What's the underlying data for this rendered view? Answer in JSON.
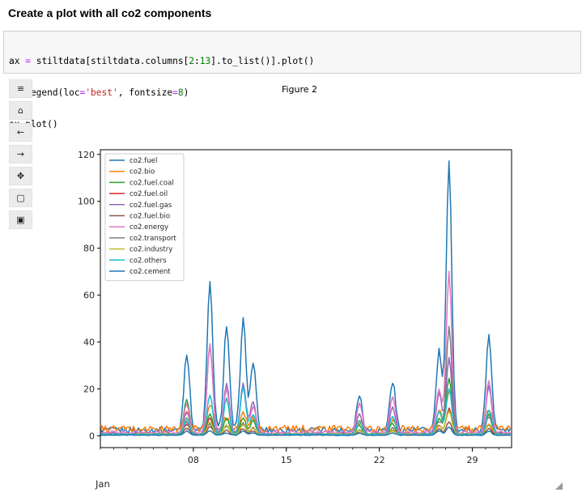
{
  "page": {
    "heading": "Create a plot with all co2 components"
  },
  "code": {
    "line1": {
      "a": "ax ",
      "op1": "=",
      "b": " stiltdata[stiltdata.columns[",
      "n1": "2",
      "c": ":",
      "n2": "13",
      "d": "].to_list()].plot()"
    },
    "line2": {
      "a": "ax.legend(loc",
      "op1": "=",
      "s1": "'best'",
      "b": ", fontsize",
      "op2": "=",
      "n1": "8",
      "c": ")"
    },
    "line3": {
      "a": "ax.plot()"
    }
  },
  "toolbar": {
    "buttons": [
      {
        "name": "menu-icon",
        "glyph": "≡"
      },
      {
        "name": "home-icon",
        "glyph": "⌂"
      },
      {
        "name": "back-arrow-icon",
        "glyph": "←"
      },
      {
        "name": "forward-arrow-icon",
        "glyph": "→"
      },
      {
        "name": "pan-move-icon",
        "glyph": "✥"
      },
      {
        "name": "zoom-rectangle-icon",
        "glyph": "▢"
      },
      {
        "name": "save-icon",
        "glyph": "▣"
      }
    ]
  },
  "figure": {
    "title": "Figure 2",
    "month_label": "Jan"
  },
  "chart_data": {
    "type": "line",
    "title": "",
    "xlabel": "",
    "ylabel": "",
    "xlim": [
      "2018-01-01",
      "2018-01-31 23:00"
    ],
    "ylim": [
      -5,
      122
    ],
    "x_ticks": [
      "08",
      "15",
      "22",
      "29"
    ],
    "y_ticks": [
      0,
      20,
      40,
      60,
      80,
      100,
      120
    ],
    "legend_position": "top-left",
    "grid": false,
    "x_sample": [
      "2018-01-01",
      "2018-01-02",
      "2018-01-03",
      "2018-01-04",
      "2018-01-05",
      "2018-01-06",
      "2018-01-07",
      "2018-01-08",
      "2018-01-09",
      "2018-01-10",
      "2018-01-11",
      "2018-01-12",
      "2018-01-13",
      "2018-01-14",
      "2018-01-15",
      "2018-01-16",
      "2018-01-17",
      "2018-01-18",
      "2018-01-19",
      "2018-01-20",
      "2018-01-21",
      "2018-01-22",
      "2018-01-23",
      "2018-01-24",
      "2018-01-25",
      "2018-01-26",
      "2018-01-27",
      "2018-01-28",
      "2018-01-29",
      "2018-01-30",
      "2018-01-31"
    ],
    "peaks_x": [
      "2018-01-07 12:00",
      "2018-01-09 06:00",
      "2018-01-10 12:00",
      "2018-01-11 18:00",
      "2018-01-12 12:00",
      "2018-01-20 12:00",
      "2018-01-23 00:00",
      "2018-01-26 12:00",
      "2018-01-27 06:00",
      "2018-01-30 06:00"
    ],
    "series": [
      {
        "name": "co2.fuel",
        "color": "#1f77b4",
        "baseline": 2.5,
        "peaks": [
          34,
          72,
          46,
          50,
          30,
          16,
          21,
          34,
          117,
          41
        ]
      },
      {
        "name": "co2.bio",
        "color": "#ff7f0e",
        "baseline": 3.0,
        "peaks": [
          9,
          12,
          6,
          7,
          5,
          3,
          4,
          8,
          18,
          9
        ]
      },
      {
        "name": "co2.fuel.coal",
        "color": "#2ca02c",
        "baseline": 0.8,
        "peaks": [
          15,
          10,
          7,
          8,
          6,
          4,
          5,
          7,
          25,
          9
        ]
      },
      {
        "name": "co2.fuel.oil",
        "color": "#d62728",
        "baseline": 0.6,
        "peaks": [
          5,
          8,
          4,
          5,
          3,
          2,
          3,
          4,
          12,
          5
        ]
      },
      {
        "name": "co2.fuel.gas",
        "color": "#9467bd",
        "baseline": 1.0,
        "peaks": [
          10,
          40,
          22,
          24,
          14,
          9,
          12,
          18,
          33,
          21
        ]
      },
      {
        "name": "co2.fuel.bio",
        "color": "#8c564b",
        "baseline": 0.4,
        "peaks": [
          3,
          4,
          2,
          3,
          2,
          1,
          2,
          3,
          6,
          3
        ]
      },
      {
        "name": "co2.energy",
        "color": "#e377c2",
        "baseline": 1.5,
        "peaks": [
          12,
          38,
          20,
          22,
          12,
          14,
          18,
          20,
          78,
          24
        ]
      },
      {
        "name": "co2.transport",
        "color": "#7f7f7f",
        "baseline": 0.5,
        "peaks": [
          6,
          5,
          4,
          5,
          3,
          2,
          3,
          6,
          50,
          8
        ]
      },
      {
        "name": "co2.industry",
        "color": "#bcbd22",
        "baseline": 0.7,
        "peaks": [
          8,
          6,
          4,
          4,
          3,
          2,
          2,
          4,
          10,
          5
        ]
      },
      {
        "name": "co2.others",
        "color": "#17becf",
        "baseline": 0.6,
        "peaks": [
          7,
          20,
          18,
          22,
          9,
          6,
          8,
          10,
          22,
          12
        ]
      },
      {
        "name": "co2.cement",
        "color": "#1f77b4",
        "baseline": 0.3,
        "peaks": [
          2,
          2,
          1,
          2,
          1,
          1,
          1,
          2,
          4,
          2
        ]
      }
    ]
  }
}
